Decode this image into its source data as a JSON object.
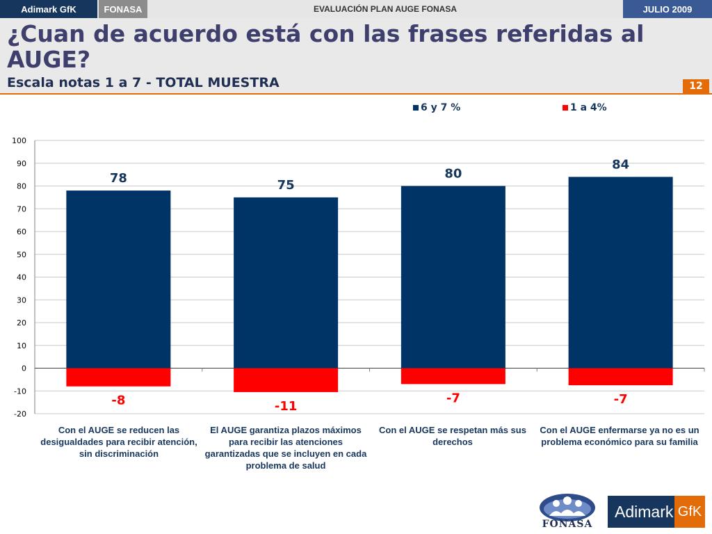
{
  "topbar": {
    "brand": "Adimark GfK",
    "client": "FONASA",
    "center": "EVALUACIÓN PLAN AUGE FONASA",
    "date": "JULIO 2009"
  },
  "header": {
    "title": "¿Cuan de acuerdo está con las frases referidas al AUGE?",
    "subtitle": "Escala notas 1 a 7 - TOTAL MUESTRA",
    "page_number": "12"
  },
  "colors": {
    "positive": "#003366",
    "negative": "#ff0000",
    "accent": "#e36c09"
  },
  "chart_data": {
    "type": "bar",
    "title": "",
    "xlabel": "",
    "ylabel": "",
    "ylim": [
      -20,
      100
    ],
    "yticks": [
      "100",
      "90",
      "80",
      "70",
      "60",
      "50",
      "40",
      "30",
      "20",
      "10",
      "0",
      "-10",
      "-20"
    ],
    "grid": true,
    "legend_position": "top",
    "categories": [
      "Con el AUGE se reducen las desigualdades para recibir atención, sin discriminación",
      "El AUGE garantiza plazos máximos para recibir las atenciones garantizadas que se incluyen en cada problema de salud",
      "Con el AUGE se respetan más sus derechos",
      "Con el AUGE enfermarse ya no es un problema económico para su familia"
    ],
    "series": [
      {
        "name": "6 y 7 %",
        "color": "#003366",
        "values": [
          78,
          75,
          80,
          84
        ],
        "labels": [
          "78",
          "75",
          "80",
          "84"
        ]
      },
      {
        "name": "1 a 4%",
        "color": "#ff0000",
        "values": [
          -8,
          -10.5,
          -7,
          -7.5
        ],
        "labels": [
          "-8",
          "-11",
          "-7",
          "-7"
        ]
      }
    ]
  },
  "logos": {
    "fonasa": "FONASA",
    "adimark": "Adimark",
    "gfk": "GfK"
  }
}
